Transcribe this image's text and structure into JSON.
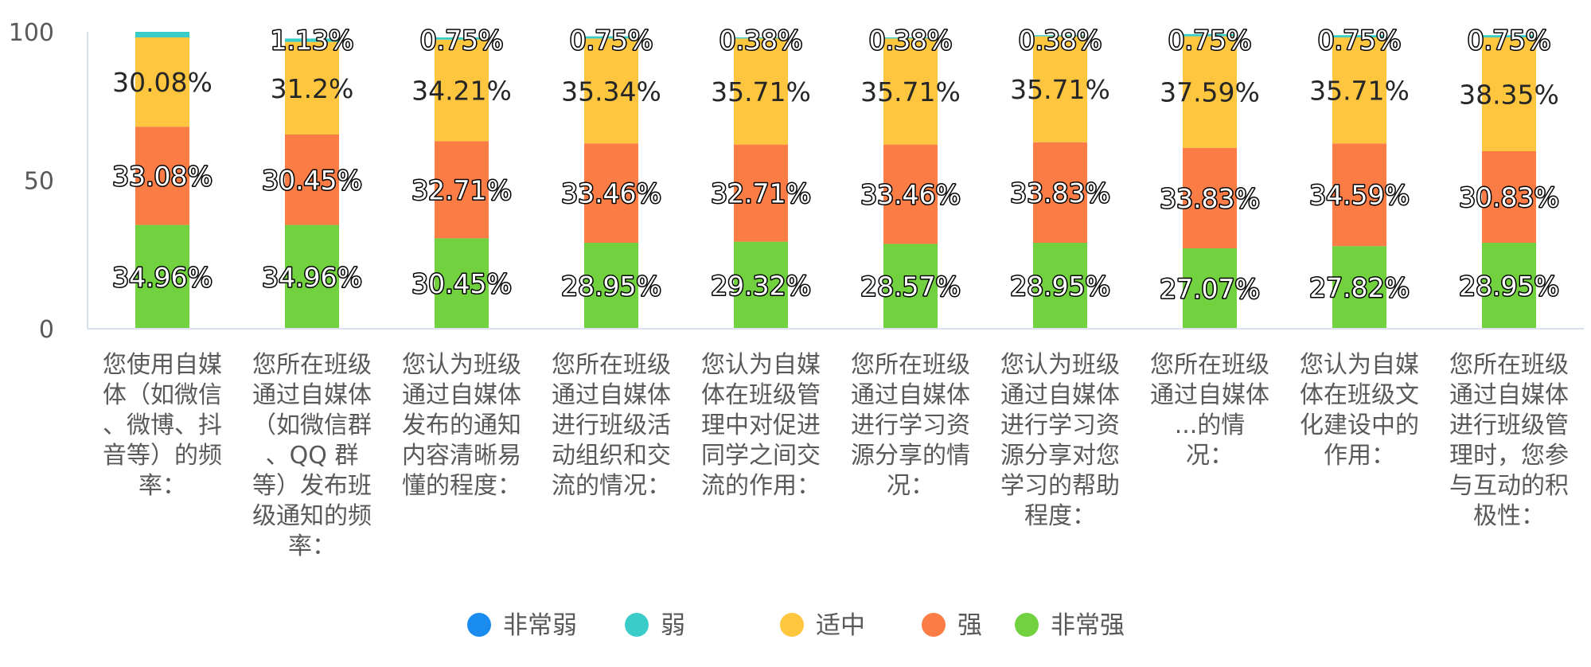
{
  "chart_data": {
    "type": "bar",
    "stacked": true,
    "ylim": [
      0,
      100
    ],
    "yticks": [
      0,
      50,
      100
    ],
    "grid": false,
    "legend_position": "bottom",
    "categories": [
      "您使用自媒体（如微信、微博、抖音等）的频率：",
      "您所在班级通过自媒体（如微信群、QQ 群等）发布班级通知的频率：",
      "您认为班级通过自媒体发布的通知内容清晰易懂的程度：",
      "您所在班级通过自媒体进行班级活动组织和交流的情况：",
      "您认为自媒体在班级管理中对促进同学之间交流的作用：",
      "您所在班级通过自媒体进行学习资源分享的情况：",
      "您认为班级通过自媒体进行学习资源分享对您学习的帮助程度：",
      "您所在班级通过自媒体...的情况：",
      "您认为自媒体在班级文化建设中的作用：",
      "您所在班级通过自媒体进行班级管理时，您参与互动的积极性："
    ],
    "category_lines": [
      [
        "您使用自媒",
        "体（如微信",
        "、微博、抖",
        "音等）的频",
        "率："
      ],
      [
        "您所在班级",
        "通过自媒体",
        "（如微信群",
        "、QQ 群",
        "等）发布班",
        "级通知的频",
        "率："
      ],
      [
        "您认为班级",
        "通过自媒体",
        "发布的通知",
        "内容清晰易",
        "懂的程度："
      ],
      [
        "您所在班级",
        "通过自媒体",
        "进行班级活",
        "动组织和交",
        "流的情况："
      ],
      [
        "您认为自媒",
        "体在班级管",
        "理中对促进",
        "同学之间交",
        "流的作用："
      ],
      [
        "您所在班级",
        "通过自媒体",
        "进行学习资",
        "源分享的情",
        "况："
      ],
      [
        "您认为班级",
        "通过自媒体",
        "进行学习资",
        "源分享对您",
        "学习的帮助",
        "程度："
      ],
      [
        "您所在班级",
        "通过自媒体",
        "...的情",
        "况："
      ],
      [
        "您认为自媒",
        "体在班级文",
        "化建设中的",
        "作用："
      ],
      [
        "您所在班级",
        "通过自媒体",
        "进行班级管",
        "理时，您参",
        "与互动的积",
        "极性："
      ]
    ],
    "series": [
      {
        "name": "非常强",
        "color": "#71d13e",
        "values": [
          34.96,
          34.96,
          30.45,
          28.95,
          29.32,
          28.57,
          28.95,
          27.07,
          27.82,
          28.95
        ],
        "labels": [
          "34.96%",
          "34.96%",
          "30.45%",
          "28.95%",
          "29.32%",
          "28.57%",
          "28.95%",
          "27.07%",
          "27.82%",
          "28.95%"
        ]
      },
      {
        "name": "强",
        "color": "#fb7c44",
        "values": [
          33.08,
          30.45,
          32.71,
          33.46,
          32.71,
          33.46,
          33.83,
          33.83,
          34.59,
          30.83
        ],
        "labels": [
          "33.08%",
          "30.45%",
          "32.71%",
          "33.46%",
          "32.71%",
          "33.46%",
          "33.83%",
          "33.83%",
          "34.59%",
          "30.83%"
        ]
      },
      {
        "name": "适中",
        "color": "#fdc63e",
        "values": [
          30.08,
          31.2,
          34.21,
          35.34,
          35.71,
          35.71,
          35.71,
          37.59,
          35.71,
          38.35
        ],
        "labels": [
          "30.08%",
          "31.2%",
          "34.21%",
          "35.34%",
          "35.71%",
          "35.71%",
          "35.71%",
          "37.59%",
          "35.71%",
          "38.35%"
        ]
      },
      {
        "name": "弱",
        "color": "#3acdc8",
        "values": [
          1.88,
          1.13,
          0.75,
          0.75,
          0.38,
          0.38,
          0.38,
          0.75,
          0.75,
          0.75
        ],
        "labels": [
          "",
          "1.13%",
          "0.75%",
          "0.75%",
          "0.38%",
          "0.38%",
          "0.38%",
          "0.75%",
          "0.75%",
          "0.75%"
        ]
      },
      {
        "name": "非常弱",
        "color": "#1a8cf0",
        "values": [
          0,
          0,
          0,
          0,
          0,
          0,
          0,
          0,
          0,
          0
        ],
        "labels": [
          "",
          "",
          "",
          "",
          "",
          "",
          "",
          "",
          "",
          ""
        ]
      }
    ],
    "legend_order": [
      "非常弱",
      "弱",
      "适中",
      "强",
      "非常强"
    ],
    "axis_color": "#d9e1ef"
  }
}
